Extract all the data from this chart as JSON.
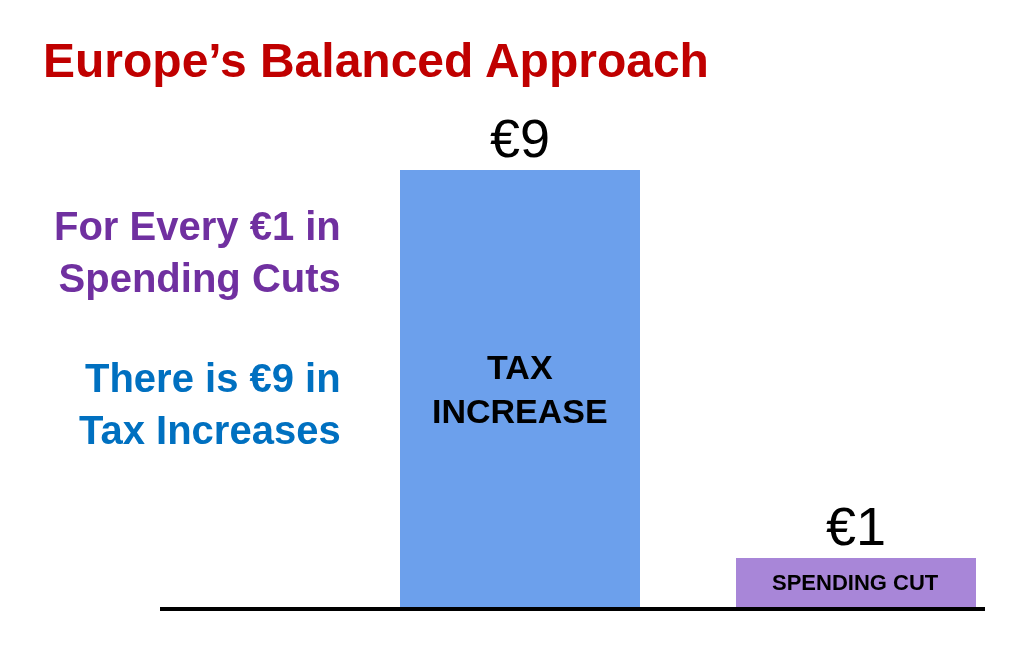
{
  "chart_data": {
    "type": "bar",
    "title": "Europe’s Balanced Approach",
    "categories": [
      "TAX INCREASE",
      "SPENDING CUT"
    ],
    "values": [
      9,
      1
    ],
    "colors": [
      "#6ca0ec",
      "#a886d8"
    ],
    "value_labels": [
      "€9",
      "€1"
    ],
    "annotations": [
      "For Every €1 in\nSpending Cuts",
      "There is €9 in\nTax Increases"
    ]
  }
}
